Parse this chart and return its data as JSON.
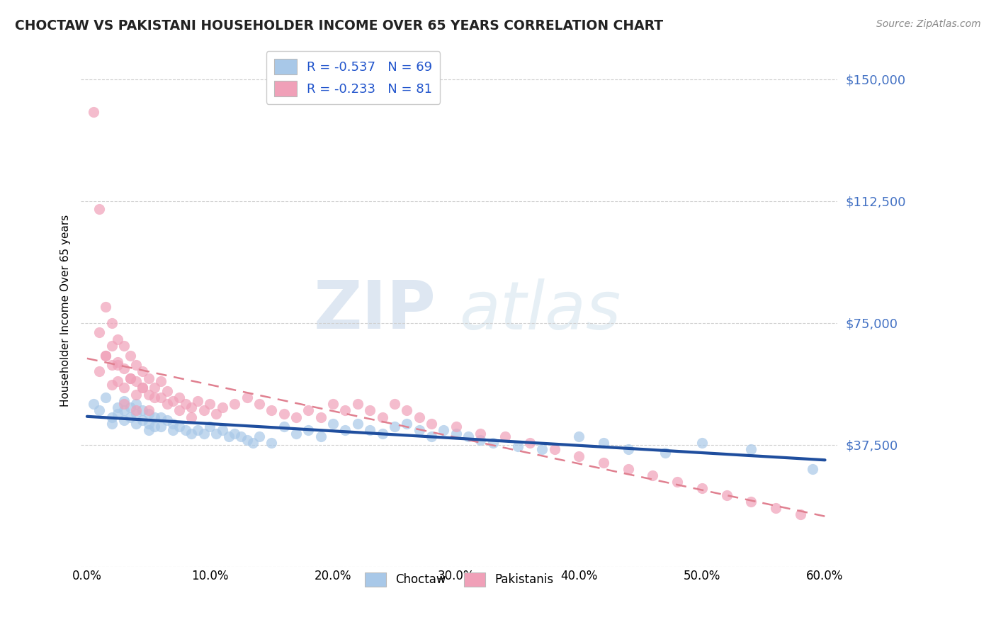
{
  "title": "CHOCTAW VS PAKISTANI HOUSEHOLDER INCOME OVER 65 YEARS CORRELATION CHART",
  "source": "Source: ZipAtlas.com",
  "ylabel": "Householder Income Over 65 years",
  "xlim": [
    -0.005,
    0.61
  ],
  "ylim": [
    0,
    157500
  ],
  "yticks": [
    0,
    37500,
    75000,
    112500,
    150000
  ],
  "ytick_labels": [
    "",
    "$37,500",
    "$75,000",
    "$112,500",
    "$150,000"
  ],
  "xticks": [
    0.0,
    0.1,
    0.2,
    0.3,
    0.4,
    0.5,
    0.6
  ],
  "xtick_labels": [
    "0.0%",
    "10.0%",
    "20.0%",
    "30.0%",
    "40.0%",
    "50.0%",
    "60.0%"
  ],
  "choctaw_color": "#a8c8e8",
  "pakistani_color": "#f0a0b8",
  "trend_choctaw_color": "#1f4e9e",
  "trend_pakistani_color": "#e08090",
  "grid_color": "#d0d0d0",
  "watermark_zip": "ZIP",
  "watermark_atlas": "atlas",
  "legend_R_choctaw": "-0.537",
  "legend_N_choctaw": "69",
  "legend_R_pakistani": "-0.233",
  "legend_N_pakistani": "81",
  "legend_label_choctaw": "Choctaw",
  "legend_label_pakistani": "Pakistanis",
  "choctaw_x": [
    0.005,
    0.01,
    0.015,
    0.02,
    0.02,
    0.025,
    0.025,
    0.03,
    0.03,
    0.03,
    0.035,
    0.035,
    0.04,
    0.04,
    0.04,
    0.045,
    0.045,
    0.05,
    0.05,
    0.05,
    0.055,
    0.055,
    0.06,
    0.06,
    0.065,
    0.07,
    0.07,
    0.075,
    0.08,
    0.085,
    0.09,
    0.095,
    0.1,
    0.105,
    0.11,
    0.115,
    0.12,
    0.125,
    0.13,
    0.135,
    0.14,
    0.15,
    0.16,
    0.17,
    0.18,
    0.19,
    0.2,
    0.21,
    0.22,
    0.23,
    0.24,
    0.25,
    0.26,
    0.27,
    0.28,
    0.29,
    0.3,
    0.31,
    0.32,
    0.33,
    0.35,
    0.37,
    0.4,
    0.42,
    0.44,
    0.47,
    0.5,
    0.54,
    0.59
  ],
  "choctaw_y": [
    50000,
    48000,
    52000,
    46000,
    44000,
    49000,
    47000,
    51000,
    48000,
    45000,
    49000,
    46000,
    50000,
    47000,
    44000,
    48000,
    45000,
    47000,
    44000,
    42000,
    46000,
    43000,
    46000,
    43000,
    45000,
    44000,
    42000,
    43000,
    42000,
    41000,
    42000,
    41000,
    43000,
    41000,
    42000,
    40000,
    41000,
    40000,
    39000,
    38000,
    40000,
    38000,
    43000,
    41000,
    42000,
    40000,
    44000,
    42000,
    44000,
    42000,
    41000,
    43000,
    44000,
    42000,
    40000,
    42000,
    41000,
    40000,
    39000,
    38000,
    37000,
    36000,
    40000,
    38000,
    36000,
    35000,
    38000,
    36000,
    30000
  ],
  "pakistani_x": [
    0.005,
    0.01,
    0.01,
    0.01,
    0.015,
    0.015,
    0.02,
    0.02,
    0.02,
    0.02,
    0.025,
    0.025,
    0.025,
    0.03,
    0.03,
    0.03,
    0.03,
    0.035,
    0.035,
    0.04,
    0.04,
    0.04,
    0.04,
    0.045,
    0.045,
    0.05,
    0.05,
    0.05,
    0.055,
    0.06,
    0.06,
    0.065,
    0.07,
    0.075,
    0.08,
    0.085,
    0.09,
    0.095,
    0.1,
    0.105,
    0.11,
    0.12,
    0.13,
    0.14,
    0.15,
    0.16,
    0.17,
    0.18,
    0.19,
    0.2,
    0.21,
    0.22,
    0.23,
    0.24,
    0.25,
    0.26,
    0.27,
    0.28,
    0.3,
    0.32,
    0.34,
    0.36,
    0.38,
    0.4,
    0.42,
    0.44,
    0.46,
    0.48,
    0.5,
    0.52,
    0.54,
    0.56,
    0.58,
    0.015,
    0.025,
    0.035,
    0.045,
    0.055,
    0.065,
    0.075,
    0.085
  ],
  "pakistani_y": [
    140000,
    110000,
    72000,
    60000,
    80000,
    65000,
    75000,
    68000,
    62000,
    56000,
    70000,
    63000,
    57000,
    68000,
    61000,
    55000,
    50000,
    65000,
    58000,
    62000,
    57000,
    53000,
    48000,
    60000,
    55000,
    58000,
    53000,
    48000,
    55000,
    57000,
    52000,
    54000,
    51000,
    52000,
    50000,
    49000,
    51000,
    48000,
    50000,
    47000,
    49000,
    50000,
    52000,
    50000,
    48000,
    47000,
    46000,
    48000,
    46000,
    50000,
    48000,
    50000,
    48000,
    46000,
    50000,
    48000,
    46000,
    44000,
    43000,
    41000,
    40000,
    38000,
    36000,
    34000,
    32000,
    30000,
    28000,
    26000,
    24000,
    22000,
    20000,
    18000,
    16000,
    65000,
    62000,
    58000,
    55000,
    52000,
    50000,
    48000,
    46000
  ]
}
